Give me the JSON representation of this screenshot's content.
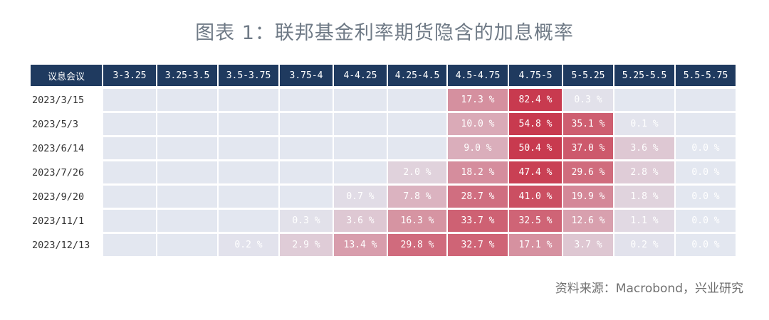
{
  "title": "图表 1：联邦基金利率期货隐含的加息概率",
  "source": "资料来源：Macrobond，兴业研究",
  "colors": {
    "header_bg": "#1f3a5f",
    "empty_cell": "#e3e7f0",
    "heat_low": "#e3e7f0",
    "heat_high": "#c83a4f"
  },
  "chart_data": {
    "type": "table",
    "corner_label": "议息会议",
    "columns": [
      "3-3.25",
      "3.25-3.5",
      "3.5-3.75",
      "3.75-4",
      "4-4.25",
      "4.25-4.5",
      "4.5-4.75",
      "4.75-5",
      "5-5.25",
      "5.25-5.5",
      "5.5-5.75"
    ],
    "rows": [
      {
        "date": "2023/3/15",
        "values": [
          null,
          null,
          null,
          null,
          null,
          null,
          17.3,
          82.4,
          0.3,
          null,
          null
        ]
      },
      {
        "date": "2023/5/3",
        "values": [
          null,
          null,
          null,
          null,
          null,
          null,
          10.0,
          54.8,
          35.1,
          0.1,
          null
        ]
      },
      {
        "date": "2023/6/14",
        "values": [
          null,
          null,
          null,
          null,
          null,
          null,
          9.0,
          50.4,
          37.0,
          3.6,
          0.0
        ]
      },
      {
        "date": "2023/7/26",
        "values": [
          null,
          null,
          null,
          null,
          null,
          2.0,
          18.2,
          47.4,
          29.6,
          2.8,
          0.0
        ]
      },
      {
        "date": "2023/9/20",
        "values": [
          null,
          null,
          null,
          null,
          0.7,
          7.8,
          28.7,
          41.0,
          19.9,
          1.8,
          0.0
        ]
      },
      {
        "date": "2023/11/1",
        "values": [
          null,
          null,
          null,
          0.3,
          3.6,
          16.3,
          33.7,
          32.5,
          12.6,
          1.1,
          0.0
        ]
      },
      {
        "date": "2023/12/13",
        "values": [
          null,
          null,
          0.2,
          2.9,
          13.4,
          29.8,
          32.7,
          17.1,
          3.7,
          0.2,
          0.0
        ]
      }
    ],
    "value_suffix": " %"
  }
}
